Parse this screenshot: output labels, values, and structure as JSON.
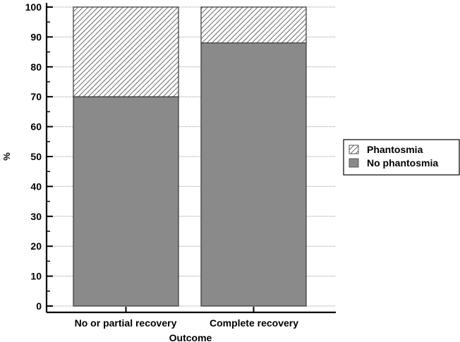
{
  "chart_data": {
    "type": "bar",
    "stacked": true,
    "title": "",
    "xlabel": "Outcome",
    "ylabel": "%",
    "ylim": [
      0,
      100
    ],
    "yticks": [
      0,
      10,
      20,
      30,
      40,
      50,
      60,
      70,
      80,
      90,
      100
    ],
    "categories": [
      "No or partial recovery",
      "Complete recovery"
    ],
    "series": [
      {
        "name": "No phantosmia",
        "values": [
          70,
          88
        ],
        "fill": "solid",
        "color": "#8a8a8a"
      },
      {
        "name": "Phantosmia",
        "values": [
          30,
          12
        ],
        "fill": "hatched",
        "color": "#ffffff"
      }
    ],
    "grid": "horizontal dotted",
    "legend": {
      "position": "right",
      "entries": [
        "Phantosmia",
        "No phantosmia"
      ]
    }
  },
  "labels": {
    "xlabel": "Outcome",
    "ylabel": "%",
    "cat0": "No or partial recovery",
    "cat1": "Complete recovery",
    "legend0": "Phantosmia",
    "legend1": "No phantosmia",
    "ticks": [
      "0",
      "10",
      "20",
      "30",
      "40",
      "50",
      "60",
      "70",
      "80",
      "90",
      "100"
    ]
  }
}
